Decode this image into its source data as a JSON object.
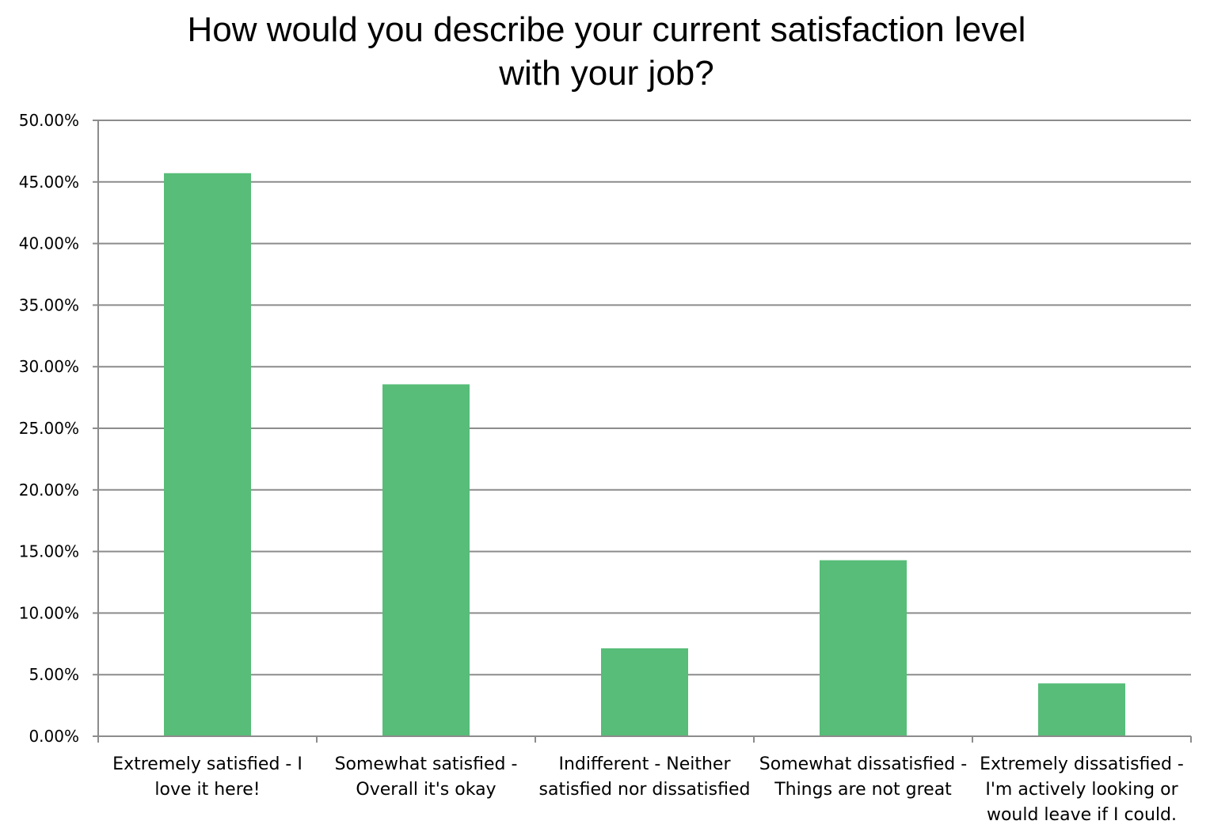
{
  "chart_data": {
    "type": "bar",
    "title": "How would you describe your current satisfaction level with your job?",
    "title_lines": [
      "How would you describe your current satisfaction level",
      "with your job?"
    ],
    "xlabel": "",
    "ylabel": "",
    "ylim": [
      0,
      0.5
    ],
    "ytick_step": 0.05,
    "yticks": [
      "0.00%",
      "5.00%",
      "10.00%",
      "15.00%",
      "20.00%",
      "25.00%",
      "30.00%",
      "35.00%",
      "40.00%",
      "45.00%",
      "50.00%"
    ],
    "grid": true,
    "legend": "none",
    "bar_color": "#57bd78",
    "categories": [
      "Extremely satisfied - I love it here!",
      "Somewhat satisfied - Overall it's okay",
      "Indifferent - Neither satisfied nor dissatisfied",
      "Somewhat dissatisfied - Things are not great",
      "Extremely dissatisfied - I'm actively looking or would leave if I could."
    ],
    "category_lines": [
      [
        "Extremely satisfied - I",
        "love it here!"
      ],
      [
        "Somewhat satisfied -",
        "Overall it's okay"
      ],
      [
        "Indifferent - Neither",
        "satisfied nor dissatisfied"
      ],
      [
        "Somewhat dissatisfied -",
        "Things are not great"
      ],
      [
        "Extremely dissatisfied -",
        "I'm actively looking or",
        "would leave if I could."
      ]
    ],
    "values": [
      0.4571,
      0.2857,
      0.0714,
      0.1429,
      0.0429
    ]
  }
}
